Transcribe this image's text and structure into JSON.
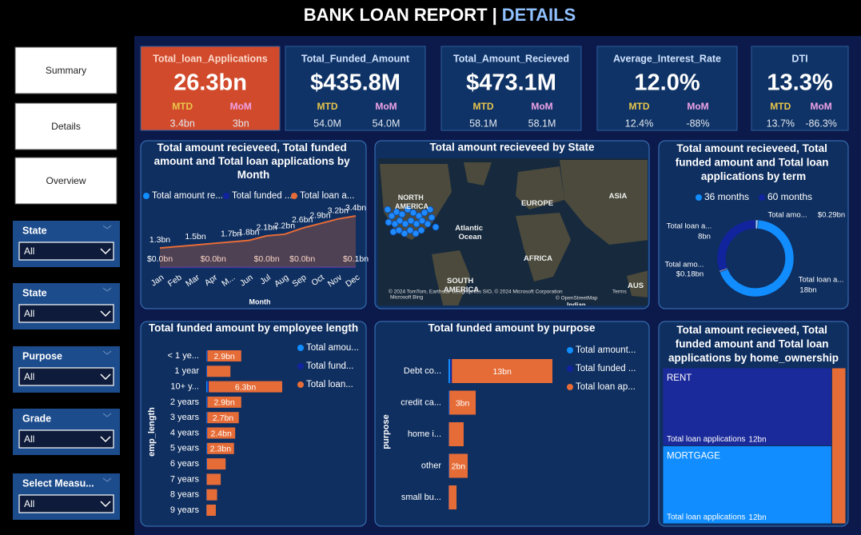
{
  "header": {
    "title": "BANK LOAN REPORT",
    "separator": "|",
    "subtitle": "DETAILS"
  },
  "nav": [
    "Summary",
    "Details",
    "Overview"
  ],
  "filters": [
    {
      "label": "State",
      "value": "All"
    },
    {
      "label": "State",
      "value": "All"
    },
    {
      "label": "Purpose",
      "value": "All"
    },
    {
      "label": "Grade",
      "value": "All"
    },
    {
      "label": "Select Measu...",
      "value": "All"
    }
  ],
  "kpis": [
    {
      "title": "Total_loan_Applications",
      "value": "26.3bn",
      "mtd_label": "MTD",
      "mtd": "3.4bn",
      "mom_label": "MoM",
      "mom": "3bn"
    },
    {
      "title": "Total_Funded_Amount",
      "value": "$435.8M",
      "mtd_label": "MTD",
      "mtd": "54.0M",
      "mom_label": "MoM",
      "mom": "54.0M"
    },
    {
      "title": "Total_Amount_Recieved",
      "value": "$473.1M",
      "mtd_label": "MTD",
      "mtd": "58.1M",
      "mom_label": "MoM",
      "mom": "58.1M"
    },
    {
      "title": "Average_Interest_Rate",
      "value": "12.0%",
      "mtd_label": "MTD",
      "mtd": "12.4%",
      "mom_label": "MoM",
      "mom": "-88%"
    },
    {
      "title": "DTI",
      "value": "13.3%",
      "mtd_label": "MTD",
      "mtd": "13.7%",
      "mom_label": "MoM",
      "mom": "-86.3%"
    }
  ],
  "chart_data": [
    {
      "type": "area",
      "title": "Total amount recieveed, Total funded amount and Total loan applications by Month",
      "xlabel": "Month",
      "categories": [
        "Jan",
        "Feb",
        "Mar",
        "Apr",
        "M...",
        "Jun",
        "Jul",
        "Aug",
        "Sep",
        "Oct",
        "Nov",
        "Dec"
      ],
      "series": [
        {
          "name": "Total amount re...",
          "color": "#118dff",
          "values": [
            0.035,
            0.033,
            0.036,
            0.036,
            0.038,
            0.039,
            0.04,
            0.041,
            0.041,
            0.043,
            0.045,
            0.053
          ],
          "value_labels": [
            "$0.0bn",
            null,
            null,
            "$0.0bn",
            null,
            null,
            "$0.0bn",
            null,
            "$0.0bn",
            null,
            null,
            "$0.1bn"
          ]
        },
        {
          "name": "Total funded ...",
          "color": "#12239e",
          "values": [
            0.032,
            0.031,
            0.033,
            0.033,
            0.035,
            0.036,
            0.036,
            0.038,
            0.038,
            0.04,
            0.042,
            0.048
          ]
        },
        {
          "name": "Total loan a...",
          "color": "#e66c37",
          "values": [
            1.3,
            1.4,
            1.5,
            1.6,
            1.7,
            1.8,
            2.1,
            2.2,
            2.6,
            2.9,
            3.2,
            3.4
          ],
          "value_labels": [
            "1.3bn",
            null,
            "1.5bn",
            null,
            "1.7bn",
            "1.8bn",
            "2.1bn",
            "2.2bn",
            "2.6bn",
            "2.9bn",
            "3.2bn",
            "3.4bn"
          ]
        }
      ]
    },
    {
      "type": "map",
      "title": "Total amount recieveed by State",
      "labels": [
        "NORTH AMERICA",
        "EUROPE",
        "ASIA",
        "Atlantic Ocean",
        "AFRICA",
        "SOUTH AMERICA",
        "AUS",
        "Indian Ocean"
      ],
      "attribution": [
        "© 2024 TomTom, Earthstar Geographics SIO, © 2024 Microsoft Corporation",
        "Terms",
        "© OpenStreetMap",
        "Microsoft Bing"
      ]
    },
    {
      "type": "donut",
      "title": "Total amount recieveed, Total funded amount and Total loan applications by term",
      "legend": [
        {
          "name": "36 months",
          "color": "#118dff"
        },
        {
          "name": "60 months",
          "color": "#12239e"
        }
      ],
      "slices": [
        {
          "name": "Total amo...",
          "value": 0.29,
          "value_label": "$0.29bn",
          "color": "#9fc9ff"
        },
        {
          "name": "Total loan a...",
          "value": 18,
          "value_label": "18bn",
          "color": "#118dff"
        },
        {
          "name": "Total amo...",
          "value": 0.18,
          "value_label": "$0.18bn",
          "color": "#8a95d8"
        },
        {
          "name": "Total loan a...",
          "value": 8,
          "value_label": "8bn",
          "color": "#12239e"
        }
      ]
    },
    {
      "type": "hbar",
      "title": "Total funded amount by employee length",
      "ylabel": "emp_length",
      "categories": [
        "< 1 ye...",
        "1 year",
        "10+ y...",
        "2 years",
        "3 years",
        "4 years",
        "5 years",
        "6 years",
        "7 years",
        "8 years",
        "9 years"
      ],
      "series": [
        {
          "name": "Total amou...",
          "color": "#118dff",
          "values": [
            0.05,
            0.04,
            0.11,
            0.05,
            0.05,
            0.04,
            0.04,
            0.03,
            0.02,
            0.02,
            0.01
          ]
        },
        {
          "name": "Total fund...",
          "color": "#12239e",
          "values": [
            0.05,
            0.03,
            0.1,
            0.05,
            0.04,
            0.04,
            0.04,
            0.03,
            0.02,
            0.01,
            0.01
          ]
        },
        {
          "name": "Total loan...",
          "color": "#e66c37",
          "values": [
            2.9,
            2.0,
            6.3,
            2.9,
            2.7,
            2.4,
            2.3,
            1.6,
            1.2,
            0.9,
            0.8
          ],
          "value_labels": [
            "2.9bn",
            null,
            "6.3bn",
            "2.9bn",
            "2.7bn",
            "2.4bn",
            "2.3bn",
            null,
            null,
            null,
            null
          ]
        }
      ]
    },
    {
      "type": "hbar",
      "title": "Total funded amount by purpose",
      "ylabel": "purpose",
      "categories": [
        "Debt co...",
        "credit ca...",
        "home i...",
        "other",
        "small bu..."
      ],
      "series": [
        {
          "name": "Total amount...",
          "color": "#118dff",
          "values": [
            0.23,
            0.06,
            0.03,
            0.04,
            0.02
          ]
        },
        {
          "name": "Total funded ...",
          "color": "#12239e",
          "values": [
            0.21,
            0.06,
            0.03,
            0.04,
            0.02
          ]
        },
        {
          "name": "Total loan ap...",
          "color": "#e66c37",
          "values": [
            13,
            3.4,
            1.9,
            2.4,
            1.0
          ],
          "value_labels": [
            "13bn",
            "3bn",
            null,
            "2bn",
            null
          ]
        }
      ]
    },
    {
      "type": "treemap",
      "title": "Total amount recieveed, Total funded amount and Total loan applications by home_ownership",
      "tiles": [
        {
          "name": "RENT",
          "measure": "Total loan applications",
          "value": 12,
          "value_label": "12bn",
          "color": "#1b2a9a"
        },
        {
          "name": "MORTGAGE",
          "measure": "Total loan applications",
          "value": 12,
          "value_label": "12bn",
          "color": "#118dff"
        },
        {
          "name": null,
          "value": 2,
          "color": "#e66c37"
        }
      ]
    }
  ]
}
